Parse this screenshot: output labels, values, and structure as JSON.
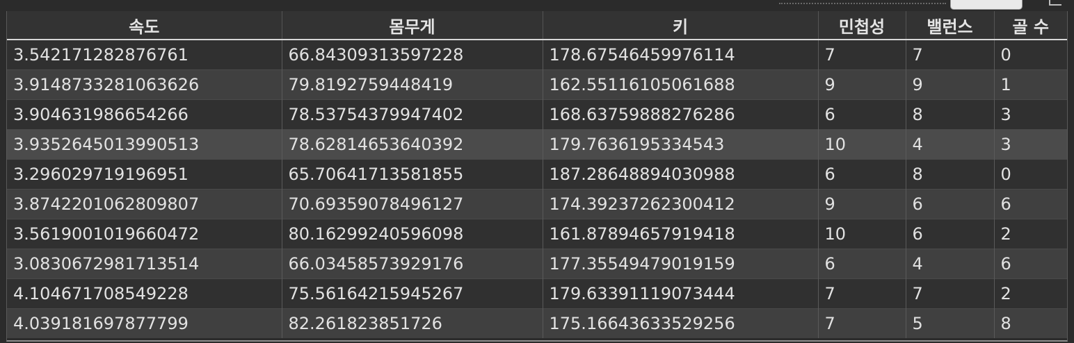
{
  "table": {
    "columns": [
      "속도",
      "몸무게",
      "키",
      "민첩성",
      "밸런스",
      "골 수"
    ],
    "rows": [
      [
        "3.542171282876761",
        "66.84309313597228",
        "178.67546459976114",
        "7",
        "7",
        "0"
      ],
      [
        "3.9148733281063626",
        "79.8192759448419",
        "162.55116105061688",
        "9",
        "9",
        "1"
      ],
      [
        "3.904631986654266",
        "78.53754379947402",
        "168.63759888276286",
        "6",
        "8",
        "3"
      ],
      [
        "3.9352645013990513",
        "78.62814653640392",
        "179.7636195334543",
        "10",
        "4",
        "3"
      ],
      [
        "3.296029719196951",
        "65.70641713581855",
        "187.28648894030988",
        "6",
        "8",
        "0"
      ],
      [
        "3.8742201062809807",
        "70.69359078496127",
        "174.39237262300412",
        "9",
        "6",
        "6"
      ],
      [
        "3.5619001019660472",
        "80.16299240596098",
        "161.87894657919418",
        "10",
        "6",
        "2"
      ],
      [
        "3.0830672981713514",
        "66.03458573929176",
        "177.35549479019159",
        "6",
        "4",
        "6"
      ],
      [
        "4.104671708549228",
        "75.56164215945267",
        "179.63391119073444",
        "7",
        "7",
        "2"
      ],
      [
        "4.039181697877799",
        "82.261823851726",
        "175.16643633529256",
        "7",
        "5",
        "8"
      ]
    ]
  }
}
